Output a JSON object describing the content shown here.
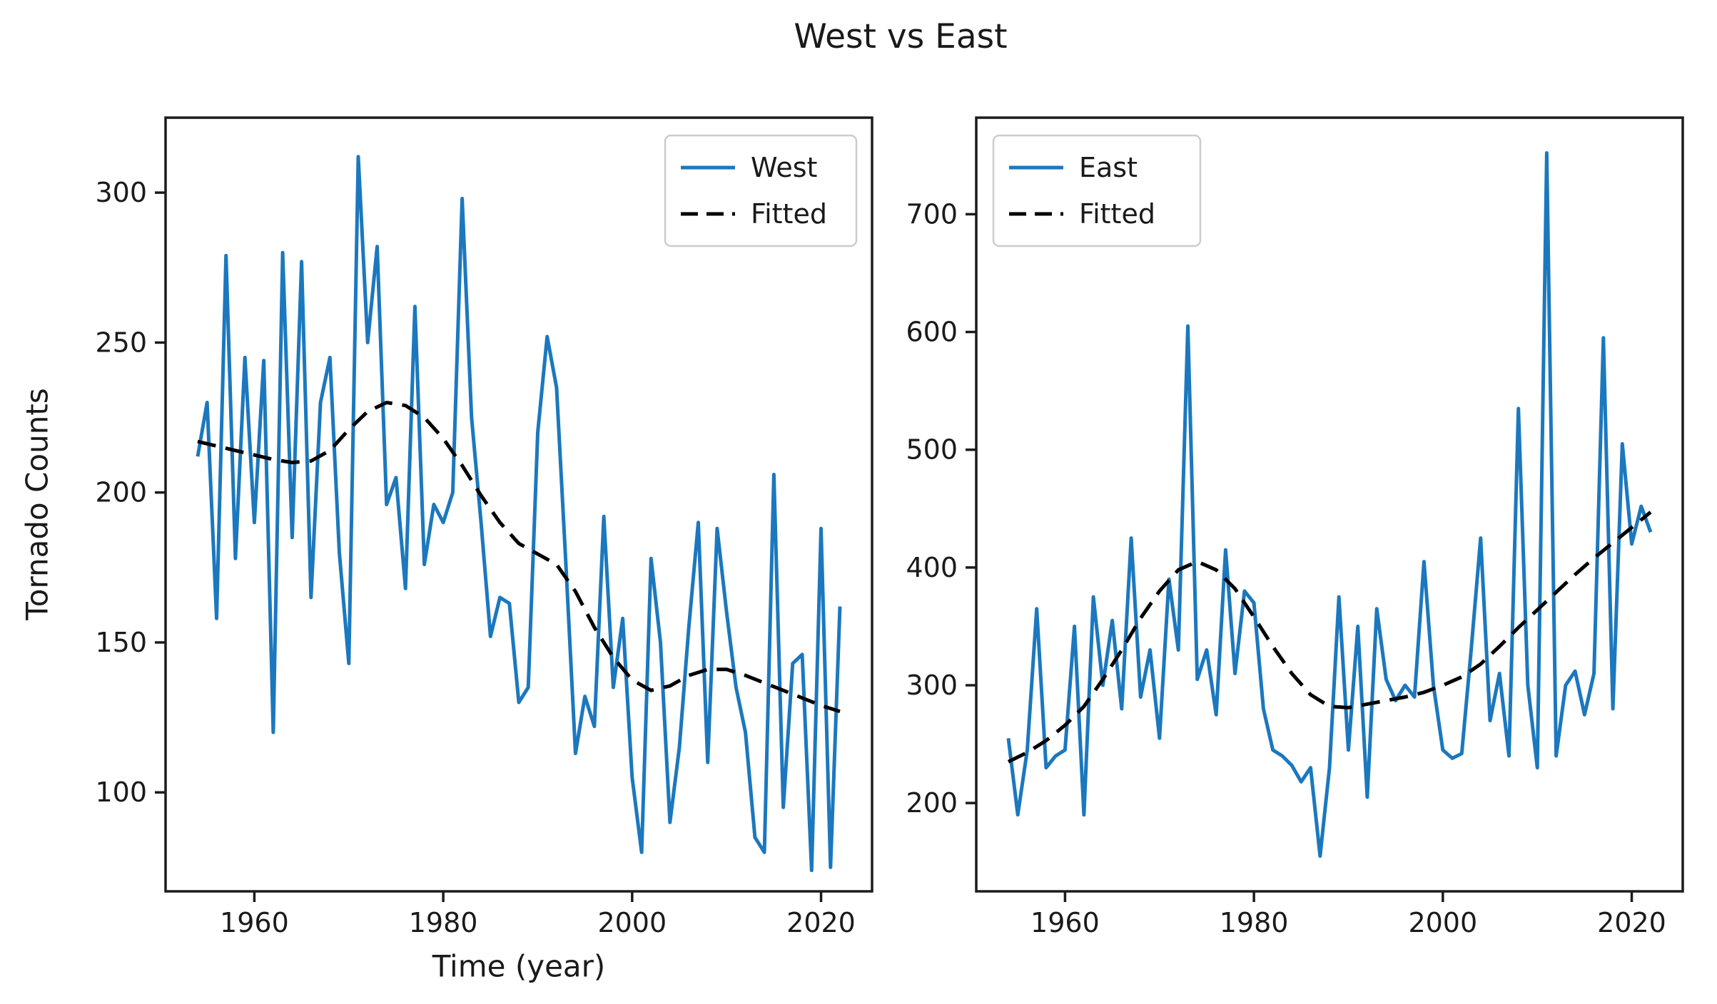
{
  "figure": {
    "background": "#ffffff",
    "text_color": "#1a1a1a",
    "spine_color": "#1c1c1c",
    "legend_border_color": "#cccccc"
  },
  "chart_data": {
    "type": "line",
    "suptitle": "West vs East",
    "x_years": [
      1954,
      1955,
      1956,
      1957,
      1958,
      1959,
      1960,
      1961,
      1962,
      1963,
      1964,
      1965,
      1966,
      1967,
      1968,
      1969,
      1970,
      1971,
      1972,
      1973,
      1974,
      1975,
      1976,
      1977,
      1978,
      1979,
      1980,
      1981,
      1982,
      1983,
      1984,
      1985,
      1986,
      1987,
      1988,
      1989,
      1990,
      1991,
      1992,
      1993,
      1994,
      1995,
      1996,
      1997,
      1998,
      1999,
      2000,
      2001,
      2002,
      2003,
      2004,
      2005,
      2006,
      2007,
      2008,
      2009,
      2010,
      2011,
      2012,
      2013,
      2014,
      2015,
      2016,
      2017,
      2018,
      2019,
      2020,
      2021,
      2022
    ],
    "subplots": [
      {
        "name": "west",
        "ylabel": "Tornado Counts",
        "xlabel": "Time (year)",
        "xticks": [
          1960,
          1980,
          2000,
          2020
        ],
        "yticks": [
          100,
          150,
          200,
          250,
          300
        ],
        "xlim": [
          1950.6,
          2025.4
        ],
        "ylim": [
          67,
          325
        ],
        "legend": {
          "position": "upper-right",
          "entries": [
            "West",
            "Fitted"
          ]
        },
        "series": [
          {
            "name": "West",
            "style": "solid",
            "color": "#1b78be",
            "y": [
              212,
              230,
              158,
              279,
              178,
              245,
              190,
              244,
              120,
              280,
              185,
              277,
              165,
              230,
              245,
              180,
              143,
              312,
              250,
              282,
              196,
              205,
              168,
              262,
              176,
              196,
              190,
              200,
              298,
              225,
              190,
              152,
              165,
              163,
              130,
              135,
              220,
              252,
              235,
              175,
              113,
              132,
              122,
              192,
              135,
              158,
              105,
              80,
              178,
              150,
              90,
              115,
              155,
              190,
              110,
              188,
              160,
              135,
              120,
              85,
              80,
              206,
              95,
              143,
              146,
              74,
              188,
              75,
              162
            ]
          },
          {
            "name": "Fitted",
            "style": "dashed",
            "color": "#000000",
            "x": [
              1954,
              1956,
              1958,
              1960,
              1962,
              1964,
              1966,
              1968,
              1970,
              1972,
              1974,
              1976,
              1978,
              1980,
              1982,
              1984,
              1986,
              1988,
              1990,
              1992,
              1994,
              1996,
              1998,
              2000,
              2002,
              2004,
              2006,
              2008,
              2010,
              2012,
              2014,
              2016,
              2018,
              2020,
              2022
            ],
            "y": [
              217,
              215.5,
              214,
              212.5,
              211,
              210,
              210.5,
              214,
              221,
              227,
              230,
              229,
              225,
              218,
              209,
              199,
              190,
              183,
              179.5,
              176,
              167,
              155,
              145,
              137.5,
              134,
              135.5,
              139,
              141,
              141,
              139,
              136.5,
              134,
              131.5,
              129,
              127
            ]
          }
        ]
      },
      {
        "name": "east",
        "ylabel": null,
        "xlabel": null,
        "xticks": [
          1960,
          1980,
          2000,
          2020
        ],
        "yticks": [
          200,
          300,
          400,
          500,
          600,
          700
        ],
        "xlim": [
          1950.6,
          2025.4
        ],
        "ylim": [
          125,
          782
        ],
        "legend": {
          "position": "upper-left",
          "entries": [
            "East",
            "Fitted"
          ]
        },
        "series": [
          {
            "name": "East",
            "style": "solid",
            "color": "#1b78be",
            "y": [
              255,
              190,
              245,
              365,
              230,
              240,
              245,
              350,
              190,
              375,
              300,
              355,
              280,
              425,
              290,
              330,
              255,
              390,
              330,
              605,
              305,
              330,
              275,
              415,
              310,
              380,
              370,
              280,
              245,
              240,
              232,
              218,
              230,
              155,
              230,
              375,
              245,
              350,
              205,
              365,
              305,
              287,
              300,
              290,
              405,
              300,
              245,
              238,
              242,
              330,
              425,
              270,
              310,
              240,
              535,
              300,
              230,
              752,
              240,
              300,
              312,
              275,
              310,
              595,
              280,
              505,
              420,
              452,
              430
            ]
          },
          {
            "name": "Fitted",
            "style": "dashed",
            "color": "#000000",
            "x": [
              1954,
              1956,
              1958,
              1960,
              1962,
              1964,
              1966,
              1968,
              1970,
              1972,
              1974,
              1976,
              1978,
              1980,
              1982,
              1984,
              1986,
              1988,
              1990,
              1992,
              1994,
              1996,
              1998,
              2000,
              2002,
              2004,
              2006,
              2008,
              2010,
              2012,
              2014,
              2016,
              2018,
              2020,
              2022
            ],
            "y": [
              235,
              243,
              253,
              266,
              282,
              305,
              330,
              357,
              380,
              398,
              405,
              398,
              382,
              358,
              333,
              310,
              292,
              282,
              281,
              284,
              287,
              290,
              294,
              300,
              307,
              318,
              333,
              349,
              364,
              379,
              394,
              408,
              421,
              434,
              447
            ]
          }
        ]
      }
    ]
  }
}
